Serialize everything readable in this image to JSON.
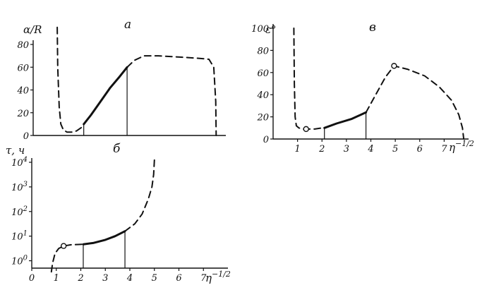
{
  "chart_data": [
    {
      "type": "line",
      "panel_label": "а",
      "ylabel": "α/R",
      "xlabel": "",
      "xlim": [
        0,
        8
      ],
      "ylim": [
        0,
        80
      ],
      "yticks": [
        "0",
        "20",
        "40",
        "60",
        "80"
      ],
      "xticks": [],
      "series": [
        {
          "style": "dashed",
          "x": [
            1.0,
            1.02,
            1.08,
            1.15,
            1.25,
            1.4,
            1.6,
            1.8,
            2.0,
            2.1
          ],
          "y": [
            95,
            60,
            25,
            10,
            5,
            3,
            3,
            4,
            7,
            10
          ]
        },
        {
          "style": "solid",
          "x": [
            2.1,
            2.4,
            2.8,
            3.2,
            3.6,
            3.9
          ],
          "y": [
            10,
            18,
            30,
            42,
            52,
            60
          ]
        },
        {
          "style": "dashed",
          "x": [
            3.9,
            4.2,
            4.6,
            5.2,
            6.0,
            6.8,
            7.3,
            7.5,
            7.58,
            7.6
          ],
          "y": [
            60,
            66,
            70,
            70,
            69,
            68,
            67,
            60,
            30,
            0
          ]
        }
      ],
      "vlines": [
        {
          "x": 2.1,
          "y": 10
        },
        {
          "x": 3.9,
          "y": 60
        }
      ]
    },
    {
      "type": "line",
      "panel_label": "б",
      "ylabel": "τ, ч",
      "xlabel": "η^-1/2",
      "xlim": [
        0,
        8
      ],
      "ylim": [
        -0.3,
        4
      ],
      "y_scale": "log",
      "yticks": [
        "10^0",
        "10^1",
        "10^2",
        "10^3",
        "10^4"
      ],
      "xticks": [
        "0",
        "1",
        "2",
        "3",
        "4",
        "5",
        "6",
        "7"
      ],
      "series": [
        {
          "style": "dashed",
          "x": [
            0.8,
            0.85,
            0.95,
            1.1,
            1.3,
            1.6,
            1.9,
            2.1
          ],
          "y": [
            -0.45,
            -0.1,
            0.3,
            0.5,
            0.6,
            0.65,
            0.66,
            0.67
          ]
        },
        {
          "style": "solid",
          "x": [
            2.1,
            2.5,
            3.0,
            3.4,
            3.8
          ],
          "y": [
            0.67,
            0.72,
            0.85,
            1.0,
            1.2
          ]
        },
        {
          "style": "dashed",
          "x": [
            3.8,
            4.2,
            4.5,
            4.75,
            4.9,
            4.97,
            5.0
          ],
          "y": [
            1.2,
            1.5,
            1.9,
            2.5,
            3.0,
            3.5,
            4.1
          ]
        }
      ],
      "markers": [
        {
          "x": 1.3,
          "y": 0.6
        }
      ],
      "vlines": [
        {
          "x": 2.1,
          "y": 0.67
        },
        {
          "x": 3.8,
          "y": 1.2
        }
      ]
    },
    {
      "type": "line",
      "panel_label": "в",
      "ylabel": "ε°",
      "xlabel": "η^-1/2",
      "xlim": [
        0,
        8
      ],
      "ylim": [
        0,
        100
      ],
      "yticks": [
        "0",
        "20",
        "40",
        "60",
        "80",
        "100"
      ],
      "xticks": [
        "1",
        "2",
        "3",
        "4",
        "5",
        "6",
        "7"
      ],
      "series": [
        {
          "style": "dashed",
          "x": [
            0.85,
            0.87,
            0.9,
            0.95,
            1.05,
            1.2,
            1.4,
            1.7,
            2.0,
            2.1
          ],
          "y": [
            100,
            50,
            20,
            12,
            10,
            9,
            9,
            9,
            10,
            10
          ]
        },
        {
          "style": "solid",
          "x": [
            2.1,
            2.6,
            3.2,
            3.8
          ],
          "y": [
            10,
            14,
            18,
            24
          ]
        },
        {
          "style": "dashed",
          "x": [
            3.8,
            4.2,
            4.6,
            4.95,
            5.5,
            6.2,
            6.8,
            7.3,
            7.6,
            7.75,
            7.8
          ],
          "y": [
            24,
            40,
            56,
            66,
            63,
            57,
            47,
            35,
            22,
            10,
            0
          ]
        }
      ],
      "markers": [
        {
          "x": 1.35,
          "y": 9
        },
        {
          "x": 4.95,
          "y": 66
        }
      ],
      "vlines": [
        {
          "x": 2.1,
          "y": 10
        },
        {
          "x": 3.8,
          "y": 24
        }
      ]
    }
  ]
}
